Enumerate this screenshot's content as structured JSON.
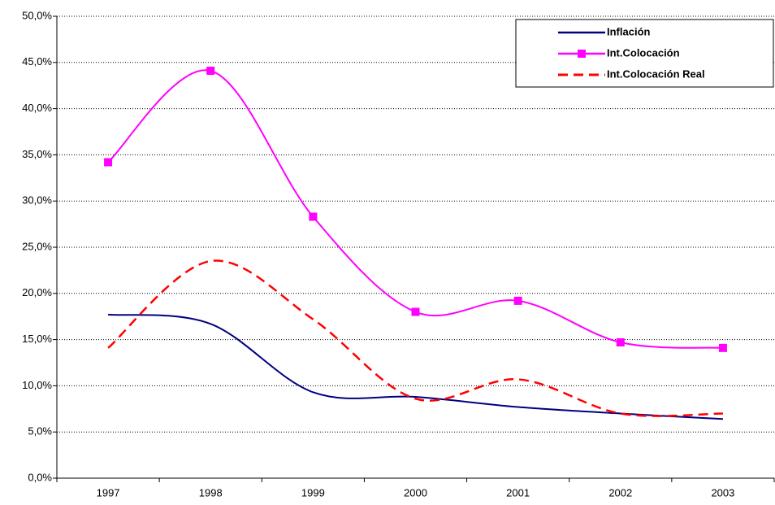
{
  "chart_data": {
    "type": "line",
    "categories": [
      "1997",
      "1998",
      "1999",
      "2000",
      "2001",
      "2002",
      "2003"
    ],
    "series": [
      {
        "name": "Inflación",
        "color": "#000080",
        "line_style": "solid",
        "marker": "none",
        "values": [
          17.7,
          16.7,
          9.3,
          8.8,
          7.7,
          7.0,
          6.4
        ]
      },
      {
        "name": "Int.Colocación",
        "color": "#ff00ff",
        "line_style": "solid",
        "marker": "square",
        "values": [
          34.2,
          44.1,
          28.3,
          18.0,
          19.2,
          14.7,
          14.1
        ]
      },
      {
        "name": "Int.Colocación Real",
        "color": "#ff0000",
        "line_style": "dashed",
        "marker": "none",
        "values": [
          14.1,
          23.5,
          17.2,
          8.6,
          10.7,
          7.0,
          7.0
        ]
      }
    ],
    "ylim": [
      0,
      50
    ],
    "yticks": [
      {
        "value": 0,
        "label": "0,0%"
      },
      {
        "value": 5,
        "label": "5,0%"
      },
      {
        "value": 10,
        "label": "10,0%"
      },
      {
        "value": 15,
        "label": "15,0%"
      },
      {
        "value": 20,
        "label": "20,0%"
      },
      {
        "value": 25,
        "label": "25,0%"
      },
      {
        "value": 30,
        "label": "30,0%"
      },
      {
        "value": 35,
        "label": "35,0%"
      },
      {
        "value": 40,
        "label": "40,0%"
      },
      {
        "value": 45,
        "label": "45,0%"
      },
      {
        "value": 50,
        "label": "50,0%"
      }
    ],
    "grid": true,
    "smooth": true,
    "legend": "upper right"
  }
}
